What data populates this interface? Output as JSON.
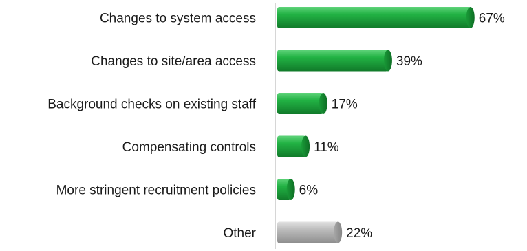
{
  "chart_data": {
    "type": "bar",
    "orientation": "horizontal",
    "categories": [
      "Changes to system access",
      "Changes to site/area access",
      "Background checks on existing staff",
      "Compensating controls",
      "More stringent recruitment policies",
      "Other"
    ],
    "values": [
      67,
      39,
      17,
      11,
      6,
      22
    ],
    "value_labels": [
      "67%",
      "39%",
      "17%",
      "11%",
      "6%",
      "22%"
    ],
    "unit": "%",
    "xlim": [
      0,
      70
    ],
    "grid": false,
    "legend": "none",
    "colors": {
      "primary": "#1fa63c",
      "other": "#b5b5b5",
      "axis": "#c8c8c8"
    }
  }
}
